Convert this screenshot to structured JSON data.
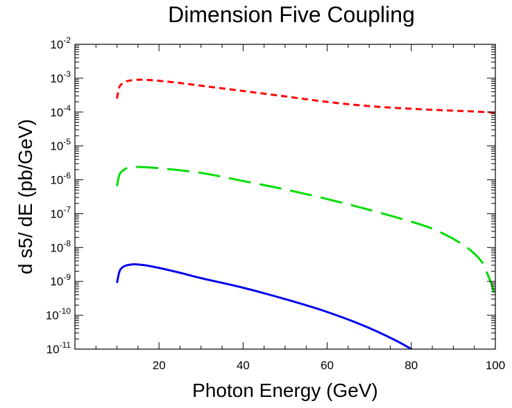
{
  "chart_data": {
    "type": "line",
    "title": "Dimension Five Coupling",
    "xlabel": "Photon Energy (GeV)",
    "ylabel": "d s5/ dE (pb/GeV)",
    "xlim": [
      0,
      100
    ],
    "ylim_log10": [
      -11,
      -2
    ],
    "yscale": "log",
    "grid": false,
    "legend": "none",
    "x_ticks": [
      20,
      40,
      60,
      80,
      100
    ],
    "y_ticks": [
      {
        "exp": -2,
        "base": "10",
        "power": "-2"
      },
      {
        "exp": -3,
        "base": "10",
        "power": "-3"
      },
      {
        "exp": -4,
        "base": "10",
        "power": "-4"
      },
      {
        "exp": -5,
        "base": "10",
        "power": "-5"
      },
      {
        "exp": -6,
        "base": "10",
        "power": "-6"
      },
      {
        "exp": -7,
        "base": "10",
        "power": "-7"
      },
      {
        "exp": -8,
        "base": "10",
        "power": "-8"
      },
      {
        "exp": -9,
        "base": "10",
        "power": "-9"
      },
      {
        "exp": -10,
        "base": "10",
        "power": "-10"
      },
      {
        "exp": -11,
        "base": "10",
        "power": "-11"
      }
    ],
    "series": [
      {
        "color": "#ff0000",
        "dash": "short",
        "x": [
          10,
          10.5,
          11,
          12,
          13,
          15,
          17,
          20,
          25,
          30,
          40,
          50,
          60,
          70,
          80,
          90,
          95,
          100
        ],
        "y": [
          0.00025,
          0.00052,
          0.00065,
          0.00078,
          0.00085,
          0.0009,
          0.00089,
          0.00084,
          0.00072,
          0.0006,
          0.00042,
          0.00029,
          0.0002,
          0.00015,
          0.000125,
          0.00011,
          0.000104,
          9.6e-05
        ]
      },
      {
        "color": "#00dd00",
        "dash": "long",
        "x": [
          10,
          10.5,
          11,
          12,
          13,
          15,
          20,
          30,
          40,
          50,
          60,
          70,
          80,
          85,
          90,
          94,
          97,
          98,
          99,
          100
        ],
        "y": [
          6.5e-07,
          1.3e-06,
          1.7e-06,
          2.1e-06,
          2.3e-06,
          2.4e-06,
          2.2e-06,
          1.6e-06,
          9.2e-07,
          5.2e-07,
          2.7e-07,
          1.3e-07,
          5.8e-08,
          3.6e-08,
          1.8e-08,
          8.5e-09,
          3.5e-09,
          1.8e-09,
          9e-10,
          3.5e-10
        ]
      },
      {
        "color": "#0000ee",
        "dash": "solid",
        "x": [
          10,
          10.5,
          11,
          12,
          13,
          14,
          15,
          17,
          20,
          25,
          30,
          40,
          50,
          60,
          70,
          80,
          85,
          87
        ],
        "y": [
          9e-10,
          1.8e-09,
          2.4e-09,
          2.9e-09,
          3.1e-09,
          3.2e-09,
          3.15e-09,
          2.95e-09,
          2.5e-09,
          1.8e-09,
          1.25e-09,
          6.5e-10,
          3e-10,
          1.25e-10,
          4.2e-11,
          1e-11,
          3e-12,
          1.5e-12
        ]
      }
    ]
  }
}
